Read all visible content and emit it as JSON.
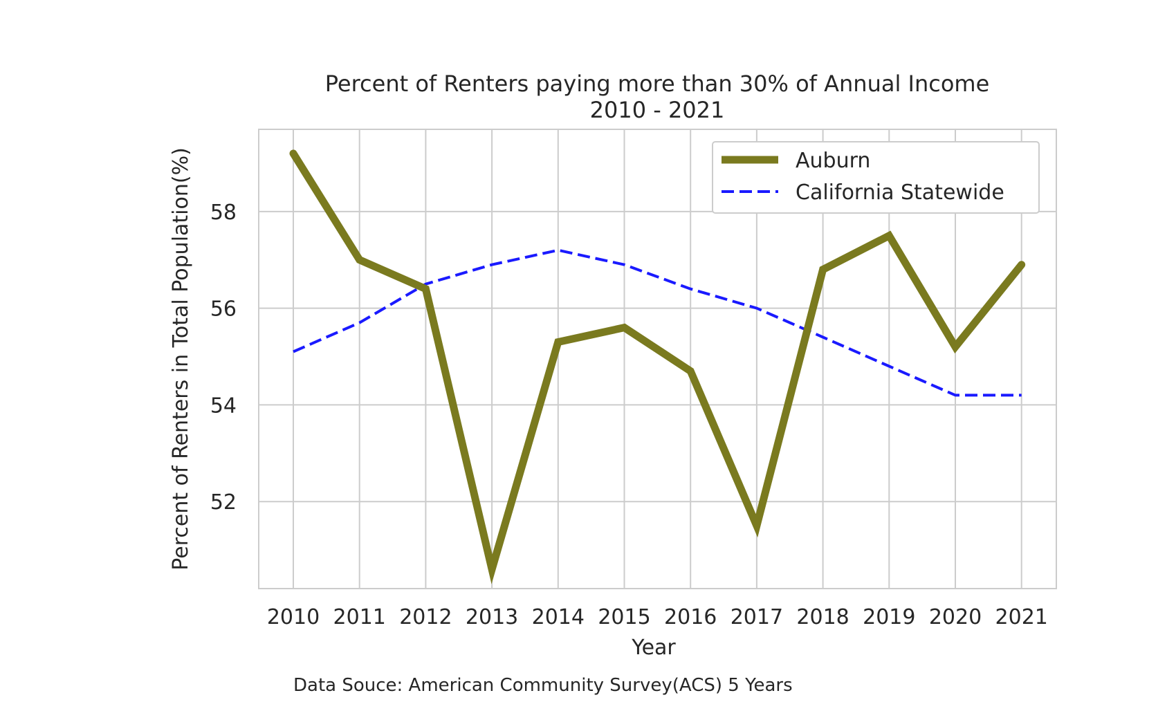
{
  "chart_data": {
    "type": "line",
    "title": "Percent of Renters paying more than 30% of Annual Income",
    "subtitle": "2010 - 2021",
    "xlabel": "Year",
    "ylabel": "Percent of Renters in Total Population(%)",
    "categories": [
      "2010",
      "2011",
      "2012",
      "2013",
      "2014",
      "2015",
      "2016",
      "2017",
      "2018",
      "2019",
      "2020",
      "2021"
    ],
    "yticks": [
      52,
      54,
      56,
      58
    ],
    "ylim": [
      50.2,
      59.7
    ],
    "grid": true,
    "legend_position": "top-right",
    "series": [
      {
        "name": "Auburn",
        "values": [
          59.2,
          57.0,
          56.4,
          50.6,
          55.3,
          55.6,
          54.7,
          51.5,
          56.8,
          57.5,
          55.2,
          56.9
        ],
        "color": "#7a7a1f",
        "style": "solid"
      },
      {
        "name": "California Statewide",
        "values": [
          55.1,
          55.7,
          56.5,
          56.9,
          57.2,
          56.9,
          56.4,
          56.0,
          55.4,
          54.8,
          54.2,
          54.2
        ],
        "color": "#1a1aff",
        "style": "dashed"
      }
    ]
  },
  "footnote": "Data Souce: American Community Survey(ACS) 5 Years"
}
